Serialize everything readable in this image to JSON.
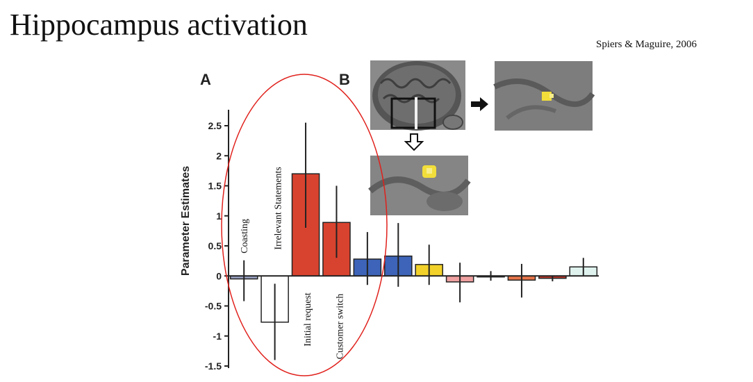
{
  "slide": {
    "title": "Hippocampus activation",
    "citation": "Spiers & Maguire, 2006"
  },
  "panels": {
    "a_label": "A",
    "b_label": "B"
  },
  "annotation_color": "#e0201b",
  "chart_data": {
    "type": "bar",
    "title": "",
    "xlabel": "",
    "ylabel": "Parameter Estimates",
    "ylim": [
      -1.5,
      2.5
    ],
    "yticks": [
      2.5,
      2,
      1.5,
      1,
      0.5,
      0,
      -0.5,
      -1,
      -1.5
    ],
    "ytick_labels": [
      "2.5",
      "2",
      "1.5",
      "1",
      "0.5",
      "0",
      "-0.5",
      "-1",
      "-1.5"
    ],
    "grid": false,
    "bar_labels": [
      {
        "index": 0,
        "text": "Coasting"
      },
      {
        "index": 1,
        "text": "Irrelevant Statements"
      },
      {
        "index": 2,
        "text": "Initial request"
      },
      {
        "index": 3,
        "text": "Customer switch"
      }
    ],
    "bars": [
      {
        "value": -0.05,
        "err_low": -0.42,
        "err_high": 0.26,
        "color": "#9aa3c4"
      },
      {
        "value": -0.77,
        "err_low": -1.4,
        "err_high": -0.13,
        "color": "#ffffff"
      },
      {
        "value": 1.7,
        "err_low": 0.8,
        "err_high": 2.55,
        "color": "#d8432f"
      },
      {
        "value": 0.89,
        "err_low": 0.3,
        "err_high": 1.5,
        "color": "#d8432f"
      },
      {
        "value": 0.28,
        "err_low": -0.15,
        "err_high": 0.73,
        "color": "#3d64b8"
      },
      {
        "value": 0.33,
        "err_low": -0.18,
        "err_high": 0.88,
        "color": "#3d64b8"
      },
      {
        "value": 0.19,
        "err_low": -0.15,
        "err_high": 0.52,
        "color": "#f2d12a"
      },
      {
        "value": -0.1,
        "err_low": -0.44,
        "err_high": 0.22,
        "color": "#f0a0a0"
      },
      {
        "value": 0.0,
        "err_low": -0.08,
        "err_high": 0.08,
        "color": "#f5f5dc"
      },
      {
        "value": -0.07,
        "err_low": -0.36,
        "err_high": 0.2,
        "color": "#e8764a"
      },
      {
        "value": -0.04,
        "err_low": -0.09,
        "err_high": 0.0,
        "color": "#c0392b"
      },
      {
        "value": 0.15,
        "err_low": 0.0,
        "err_high": 0.3,
        "color": "#dff2ee"
      }
    ]
  }
}
